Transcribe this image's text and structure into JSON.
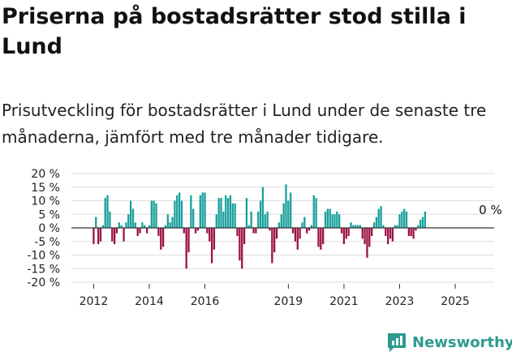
{
  "title": "Priserna på bostadsrätter stod stilla i Lund",
  "subtitle": "Prisutveckling för bostadsrätter i Lund under de senaste tre månaderna, jämfört med tre månader tidigare.",
  "brand": {
    "name": "Newsworthy"
  },
  "colors": {
    "positive": "#17a09a",
    "negative": "#9c1046",
    "grid": "#dddddd",
    "axis": "#333333",
    "brand": "#2c9b8e"
  },
  "chart_data": {
    "type": "bar",
    "ylim": [
      -20,
      20
    ],
    "xlim": [
      2011.2,
      2026.4
    ],
    "grid": true,
    "y_ticks": [
      {
        "value": 20,
        "label": "20 %"
      },
      {
        "value": 15,
        "label": "15 %"
      },
      {
        "value": 10,
        "label": "10 %"
      },
      {
        "value": 5,
        "label": "5 %"
      },
      {
        "value": 0,
        "label": "0 %"
      },
      {
        "value": -5,
        "label": "-5 %"
      },
      {
        "value": -10,
        "label": "-10 %"
      },
      {
        "value": -15,
        "label": "-15 %"
      },
      {
        "value": -20,
        "label": "-20 %"
      }
    ],
    "x_ticks": [
      {
        "value": 2012,
        "label": "2012"
      },
      {
        "value": 2014,
        "label": "2014"
      },
      {
        "value": 2016,
        "label": "2016"
      },
      {
        "value": 2019,
        "label": "2019"
      },
      {
        "value": 2021,
        "label": "2021"
      },
      {
        "value": 2023,
        "label": "2023"
      },
      {
        "value": 2025,
        "label": "2025"
      }
    ],
    "annotation": {
      "x": 2025.5,
      "y": 0,
      "text": "0 %"
    },
    "start": 2012,
    "step": 0.08333,
    "values": [
      -6,
      4,
      -6,
      -5,
      1,
      11,
      12,
      6,
      -5,
      -6,
      -2,
      2,
      1,
      -5,
      2,
      5,
      10,
      7,
      2,
      -3,
      -2,
      2,
      1,
      -2,
      1,
      10,
      10,
      9,
      -3,
      -8,
      -7,
      1,
      5,
      2,
      4,
      10,
      12,
      13,
      10,
      -2,
      -15,
      -9,
      12,
      7,
      -2,
      -1,
      12,
      13,
      13,
      -2,
      -5,
      -13,
      -8,
      5,
      11,
      11,
      6,
      12,
      11,
      12,
      9,
      9,
      -3,
      -12,
      -15,
      -6,
      11,
      1,
      6,
      -2,
      -2,
      6,
      10,
      15,
      5,
      6,
      -1,
      -13,
      -9,
      -4,
      2,
      5,
      9,
      16,
      10,
      13,
      -2,
      -5,
      -8,
      -4,
      2,
      4,
      -2,
      -1,
      1,
      12,
      11,
      -7,
      -8,
      -6,
      6,
      7,
      7,
      5,
      5,
      6,
      5,
      -2,
      -6,
      -4,
      -3,
      2,
      1,
      1,
      1,
      1,
      -4,
      -6,
      -11,
      -7,
      -3,
      2,
      4,
      7,
      8,
      1,
      -3,
      -6,
      -4,
      -5,
      1,
      1,
      5,
      6,
      7,
      6,
      -3,
      -3,
      -4,
      -1,
      1,
      3,
      4,
      6,
      0
    ]
  }
}
